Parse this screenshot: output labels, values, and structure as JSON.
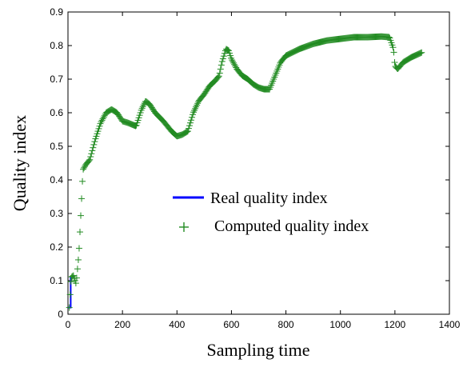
{
  "chart_data": {
    "type": "line",
    "title": "",
    "xlabel": "Sampling time",
    "ylabel": "Quality index",
    "xlim": [
      0,
      1400
    ],
    "ylim": [
      0,
      0.9
    ],
    "xticks": [
      "0",
      "200",
      "400",
      "600",
      "800",
      "1000",
      "1200",
      "1400"
    ],
    "yticks": [
      "0",
      "0.1",
      "0.2",
      "0.3",
      "0.4",
      "0.5",
      "0.6",
      "0.7",
      "0.8",
      "0.9"
    ],
    "grid": false,
    "legend_position": "center",
    "series": [
      {
        "name": "Real quality index",
        "style": "line",
        "color": "#0000ff",
        "x": [
          0,
          10,
          10
        ],
        "y": [
          0.02,
          0.02,
          0.11
        ]
      },
      {
        "name": "Computed quality index",
        "style": "plus-marker",
        "color": "#228b22",
        "x": [
          5,
          12,
          20,
          30,
          40,
          48,
          55,
          65,
          80,
          100,
          120,
          140,
          160,
          180,
          200,
          220,
          250,
          270,
          285,
          300,
          320,
          350,
          380,
          400,
          420,
          440,
          460,
          480,
          500,
          520,
          540,
          555,
          565,
          580,
          590,
          600,
          620,
          640,
          660,
          680,
          700,
          720,
          740,
          760,
          780,
          800,
          850,
          900,
          950,
          1000,
          1050,
          1100,
          1150,
          1180,
          1195,
          1200,
          1210,
          1230,
          1260,
          1300
        ],
        "y": [
          0.02,
          0.11,
          0.115,
          0.09,
          0.18,
          0.31,
          0.43,
          0.445,
          0.46,
          0.52,
          0.57,
          0.6,
          0.61,
          0.6,
          0.575,
          0.57,
          0.56,
          0.61,
          0.635,
          0.625,
          0.6,
          0.575,
          0.545,
          0.53,
          0.535,
          0.545,
          0.6,
          0.635,
          0.655,
          0.68,
          0.695,
          0.71,
          0.75,
          0.79,
          0.785,
          0.76,
          0.73,
          0.71,
          0.7,
          0.685,
          0.675,
          0.67,
          0.67,
          0.71,
          0.75,
          0.77,
          0.79,
          0.805,
          0.815,
          0.82,
          0.825,
          0.825,
          0.827,
          0.825,
          0.79,
          0.74,
          0.73,
          0.75,
          0.765,
          0.78
        ]
      }
    ]
  }
}
